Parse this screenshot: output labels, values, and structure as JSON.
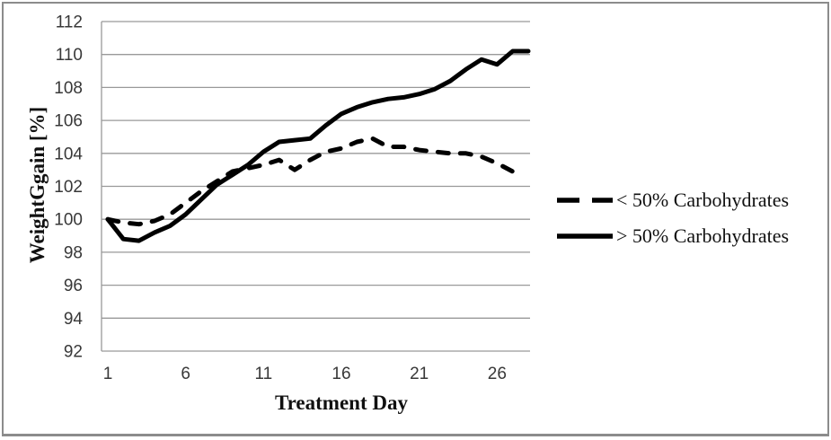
{
  "figure_title": "",
  "chart_data": {
    "type": "line",
    "title": "",
    "xlabel": "Treatment Day",
    "ylabel": "WeightGgain [%]",
    "xlim": [
      1,
      28
    ],
    "ylim": [
      92,
      112
    ],
    "grid": "horizontal",
    "legend_position": "right",
    "line_color": "#000000",
    "y_ticks": [
      92,
      94,
      96,
      98,
      100,
      102,
      104,
      106,
      108,
      110,
      112
    ],
    "x_ticks_at": [
      1,
      6,
      11,
      16,
      21,
      26
    ],
    "x_tick_labels": [
      "1",
      "6",
      "11",
      "16",
      "21",
      "26"
    ],
    "x": [
      1,
      2,
      3,
      4,
      5,
      6,
      7,
      8,
      9,
      10,
      11,
      12,
      13,
      14,
      15,
      16,
      17,
      18,
      19,
      20,
      21,
      22,
      23,
      24,
      25,
      26,
      27,
      28
    ],
    "series": [
      {
        "name": "< 50% Carbohydrates",
        "style": "dashed",
        "values": [
          100.0,
          99.8,
          99.7,
          99.9,
          100.3,
          101.0,
          101.7,
          102.3,
          102.9,
          103.1,
          103.3,
          103.6,
          103.0,
          103.6,
          104.1,
          104.3,
          104.7,
          104.9,
          104.4,
          104.4,
          104.2,
          104.1,
          104.0,
          104.0,
          103.8,
          103.4,
          102.9,
          null
        ]
      },
      {
        "name": "> 50% Carbohydrates",
        "style": "solid",
        "values": [
          100.0,
          98.8,
          98.7,
          99.2,
          99.6,
          100.3,
          101.2,
          102.1,
          102.7,
          103.3,
          104.1,
          104.7,
          104.8,
          104.9,
          105.7,
          106.4,
          106.8,
          107.1,
          107.3,
          107.4,
          107.6,
          107.9,
          108.4,
          109.1,
          109.7,
          109.4,
          110.2,
          110.2
        ]
      }
    ]
  }
}
